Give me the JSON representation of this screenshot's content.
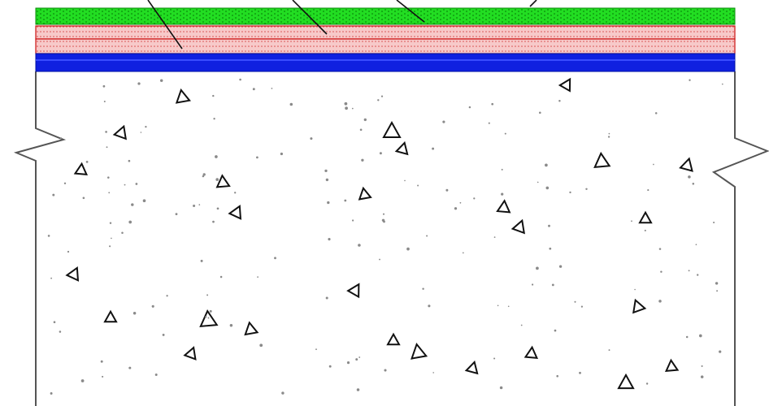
{
  "diagram": {
    "description_visible_text": "",
    "layers": [
      {
        "name": "green-top-layer",
        "color": "#22dd22",
        "pattern": "dotted"
      },
      {
        "name": "pink-middle-layer",
        "color": "#f7c9c9",
        "pattern": "dotted-red"
      },
      {
        "name": "blue-waterproofing-layer",
        "color": "#1020e0",
        "pattern": "solid"
      },
      {
        "name": "concrete-slab",
        "color": "#ffffff",
        "pattern": "aggregate-triangles-and-dots"
      }
    ],
    "outline_color": "#555555",
    "triangle_color": "#111111",
    "dot_color": "#8a8a8a",
    "leader_color": "#111111",
    "break_marks": [
      "left",
      "right"
    ]
  }
}
